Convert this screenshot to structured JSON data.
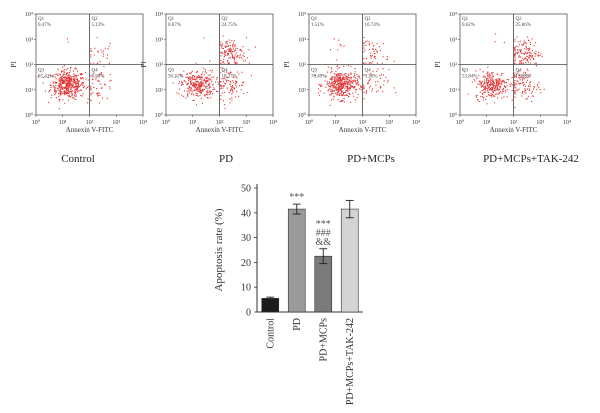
{
  "chart_data": [
    {
      "type": "scatter",
      "caption": "Control",
      "xlabel": "Annexin V-FITC",
      "ylabel": "PI",
      "scale": "log",
      "xlim": [
        1,
        10000
      ],
      "ylim": [
        1,
        10000
      ],
      "x_ticks": [
        "10⁰",
        "10¹",
        "10²",
        "10³",
        "10⁴"
      ],
      "y_ticks": [
        "10⁰",
        "10¹",
        "10²",
        "10³",
        "10⁴"
      ],
      "quadrant_divider": [
        100,
        100
      ],
      "quadrants": {
        "Q1": "0.47%",
        "Q2": "5.13%",
        "Q3": "85.42%",
        "Q4": "8.98%"
      },
      "point_color": "#e23030"
    },
    {
      "type": "scatter",
      "caption": "PD",
      "xlabel": "Annexin V-FITC",
      "ylabel": "PI",
      "scale": "log",
      "xlim": [
        1,
        10000
      ],
      "ylim": [
        1,
        10000
      ],
      "x_ticks": [
        "10⁰",
        "10¹",
        "10²",
        "10³",
        "10⁴"
      ],
      "y_ticks": [
        "10⁰",
        "10¹",
        "10²",
        "10³",
        "10⁴"
      ],
      "quadrant_divider": [
        100,
        100
      ],
      "quadrants": {
        "Q1": "0.67%",
        "Q2": "24.75%",
        "Q3": "56.31%",
        "Q4": "18.27%"
      },
      "point_color": "#e23030"
    },
    {
      "type": "scatter",
      "caption": "PD+MCPs",
      "xlabel": "Annexin V-FITC",
      "ylabel": "PI",
      "scale": "log",
      "xlim": [
        1,
        10000
      ],
      "ylim": [
        1,
        10000
      ],
      "x_ticks": [
        "10⁰",
        "10¹",
        "10²",
        "10³",
        "10⁴"
      ],
      "y_ticks": [
        "10⁰",
        "10¹",
        "10²",
        "10³",
        "10⁴"
      ],
      "quadrant_divider": [
        100,
        100
      ],
      "quadrants": {
        "Q1": "1.51%",
        "Q2": "10.74%",
        "Q3": "78.49%",
        "Q4": "9.26%"
      },
      "point_color": "#e23030"
    },
    {
      "type": "scatter",
      "caption": "PD+MCPs+TAK-242",
      "xlabel": "Annexin V-FITC",
      "ylabel": "PI",
      "scale": "log",
      "xlim": [
        1,
        10000
      ],
      "ylim": [
        1,
        10000
      ],
      "x_ticks": [
        "10⁰",
        "10¹",
        "10²",
        "10³",
        "10⁴"
      ],
      "y_ticks": [
        "10⁰",
        "10¹",
        "10²",
        "10³",
        "10⁴"
      ],
      "quadrant_divider": [
        100,
        100
      ],
      "quadrants": {
        "Q1": "0.62%",
        "Q2": "25.86%",
        "Q3": "53.84%",
        "Q4": "19.68%"
      },
      "point_color": "#e23030"
    },
    {
      "type": "bar",
      "categories": [
        "Control",
        "PD",
        "PD+MCPs",
        "PD+MCPs+TAK-242"
      ],
      "values": [
        5.5,
        41.5,
        22.5,
        41.5
      ],
      "errors": [
        0.5,
        2.0,
        3.0,
        3.5
      ],
      "colors": [
        "#1c1c1c",
        "#9a9a9a",
        "#7a7a7a",
        "#d4d4d4"
      ],
      "ylabel": "Apoptosis rate (%)",
      "ylim": [
        0,
        50
      ],
      "yticks": [
        "0",
        "10",
        "20",
        "30",
        "40",
        "50"
      ],
      "significance": [
        {
          "category": "PD",
          "marks": [
            "***"
          ]
        },
        {
          "category": "PD+MCPs",
          "marks": [
            "***",
            "###",
            "&&"
          ]
        }
      ]
    }
  ]
}
